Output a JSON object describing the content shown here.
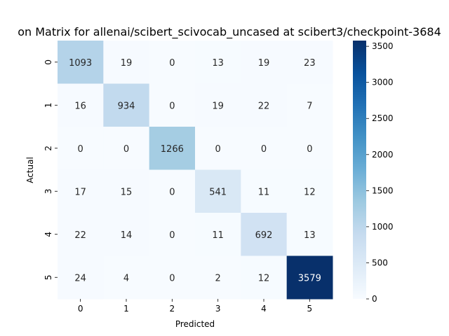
{
  "chart_data": {
    "type": "heatmap",
    "title": "on Matrix for allenai/scibert_scivocab_uncased at scibert3/checkpoint-3684",
    "xlabel": "Predicted",
    "ylabel": "Actual",
    "x_categories": [
      "0",
      "1",
      "2",
      "3",
      "4",
      "5"
    ],
    "y_categories": [
      "0",
      "1",
      "2",
      "3",
      "4",
      "5"
    ],
    "matrix": [
      [
        1093,
        19,
        0,
        13,
        19,
        23
      ],
      [
        16,
        934,
        0,
        19,
        22,
        7
      ],
      [
        0,
        0,
        1266,
        0,
        0,
        0
      ],
      [
        17,
        15,
        0,
        541,
        11,
        12
      ],
      [
        22,
        14,
        0,
        11,
        692,
        13
      ],
      [
        24,
        4,
        0,
        2,
        12,
        3579
      ]
    ],
    "colorbar": {
      "range": [
        0,
        3579
      ],
      "ticks": [
        0,
        500,
        1000,
        1500,
        2000,
        2500,
        3000,
        3500
      ],
      "colormap": [
        "#f7fbff",
        "#deebf7",
        "#c6dbef",
        "#9ecae1",
        "#6baed6",
        "#4292c6",
        "#2171b5",
        "#08519c",
        "#08306b"
      ]
    }
  }
}
